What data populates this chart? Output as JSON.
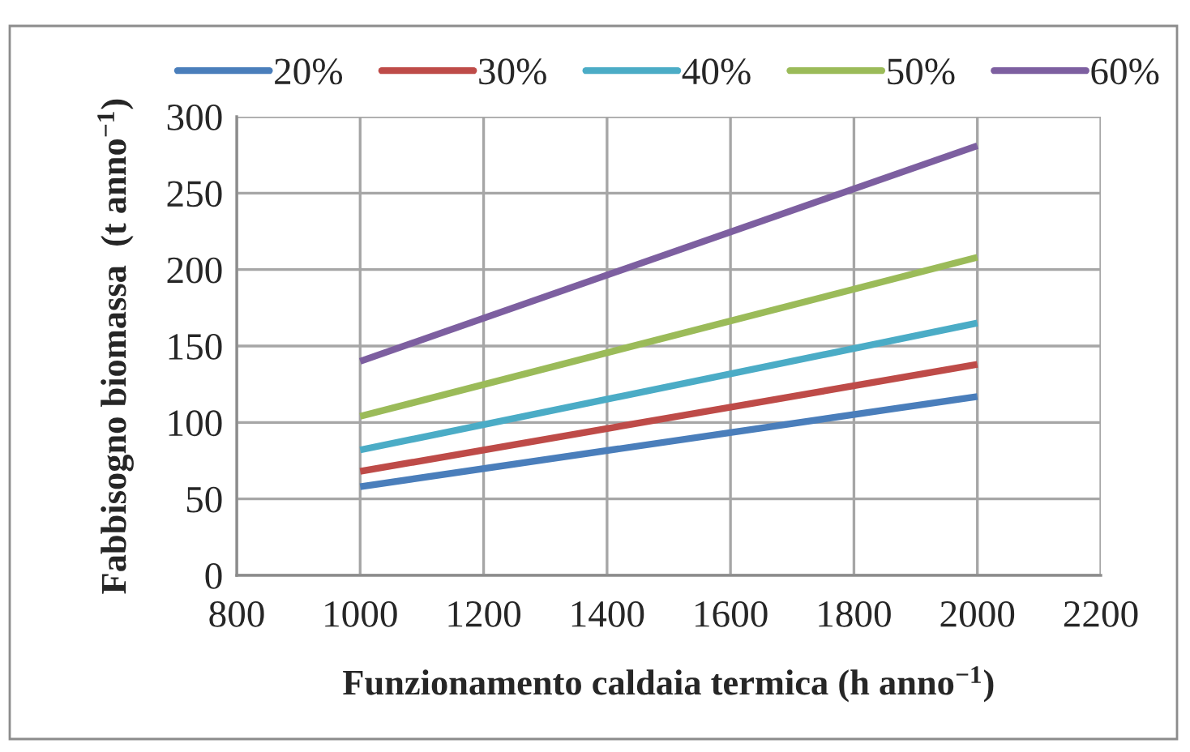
{
  "chart_data": {
    "type": "line",
    "xlabel": "Funzionamento caldaia termica (h anno$^{−1}$)",
    "ylabel": "Fabbisogno biomassa  (t anno$^{−1}$)",
    "x": [
      1000,
      2000
    ],
    "series": [
      {
        "name": "20%",
        "color": "#4a7ebb",
        "values": [
          58,
          117
        ]
      },
      {
        "name": "30%",
        "color": "#be4b48",
        "values": [
          68,
          138
        ]
      },
      {
        "name": "40%",
        "color": "#4bacc6",
        "values": [
          82,
          165
        ]
      },
      {
        "name": "50%",
        "color": "#9bbb59",
        "values": [
          104,
          208
        ]
      },
      {
        "name": "60%",
        "color": "#7d5fa0",
        "values": [
          140,
          281
        ]
      }
    ],
    "xlim": [
      800,
      2200
    ],
    "xticks": [
      800,
      1000,
      1200,
      1400,
      1600,
      1800,
      2000,
      2200
    ],
    "ylim": [
      0,
      300
    ],
    "yticks": [
      0,
      50,
      100,
      150,
      200,
      250,
      300
    ],
    "grid": true,
    "legend": "top",
    "marker": "none",
    "line_style": "solid"
  }
}
